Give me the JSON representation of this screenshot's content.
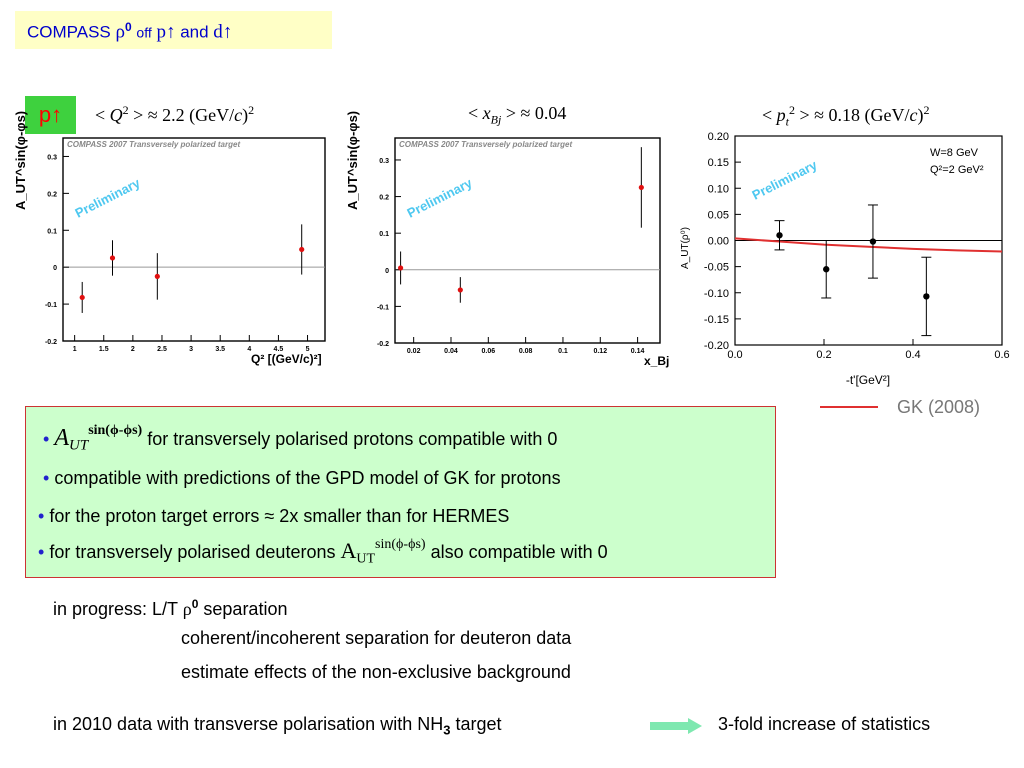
{
  "title": {
    "prefix": "COMPASS",
    "rho": "ρ",
    "zero": "0",
    "off": "off",
    "p": "p↑",
    "and": "and",
    "d": "d↑"
  },
  "badge": "p↑",
  "headers": {
    "h1": {
      "lt": "< ",
      "var": "Q",
      "sup": "2",
      "rest": " > ≈ 2.2 (GeV/",
      "c": "c",
      "close": ")",
      "sup2": "2"
    },
    "h2": {
      "lt": "< ",
      "var": "x",
      "sub": "Bj",
      "rest": " > ≈ 0.04"
    },
    "h3": {
      "lt": "< ",
      "var": "p",
      "sub": "t",
      "sup": "2",
      "rest": " > ≈ 0.18 (GeV/",
      "c": "c",
      "close": ")",
      "sup2": "2"
    }
  },
  "colors": {
    "data_point": "#e01010",
    "gk_curve": "#e03030",
    "preliminary": "#4ec8f0",
    "bullet": "#2222cc",
    "box_bg": "#ccffcc",
    "box_border": "#cc3333"
  },
  "chart_data": [
    {
      "type": "scatter",
      "banner": "COMPASS 2007 Transversely polarized target",
      "watermark": "Preliminary",
      "ylabel": "A_UT^sin(φ-φs)",
      "xlabel": "Q² [(GeV/c)²]",
      "xlim": [
        0.8,
        5.3
      ],
      "ylim": [
        -0.2,
        0.35
      ],
      "xticks": [
        "1",
        "1.5",
        "2",
        "2.5",
        "3",
        "3.5",
        "4",
        "4.5",
        "5"
      ],
      "yticks": [
        "-0.2",
        "-0.1",
        "0",
        "0.1",
        "0.2",
        "0.3"
      ],
      "x": [
        1.13,
        1.65,
        2.42,
        4.9
      ],
      "y": [
        -0.082,
        0.025,
        -0.025,
        0.048
      ],
      "err": [
        0.042,
        0.048,
        0.063,
        0.068
      ]
    },
    {
      "type": "scatter",
      "banner": "COMPASS 2007 Transversely polarized target",
      "watermark": "Preliminary",
      "ylabel": "A_UT^sin(φ-φs)",
      "xlabel": "x_Bj",
      "xlim": [
        0.01,
        0.152
      ],
      "ylim": [
        -0.2,
        0.36
      ],
      "xticks": [
        "0.02",
        "0.04",
        "0.06",
        "0.08",
        "0.1",
        "0.12",
        "0.14"
      ],
      "yticks": [
        "-0.2",
        "-0.1",
        "0",
        "0.1",
        "0.2",
        "0.3"
      ],
      "x": [
        0.013,
        0.045,
        0.142
      ],
      "y": [
        0.005,
        -0.055,
        0.225
      ],
      "err": [
        0.045,
        0.035,
        0.11
      ]
    },
    {
      "type": "scatter",
      "watermark": "Preliminary",
      "ylabel": "A_UT(ρ⁰)",
      "xlabel": "-t'[GeV²]",
      "annotation": [
        "W=8 GeV",
        "Q²=2 GeV²"
      ],
      "xlim": [
        0.0,
        0.6
      ],
      "ylim": [
        -0.2,
        0.2
      ],
      "xticks": [
        "0.0",
        "0.2",
        "0.4",
        "0.6"
      ],
      "yticks": [
        "-0.20",
        "-0.15",
        "-0.10",
        "-0.05",
        "0.00",
        "0.05",
        "0.10",
        "0.15",
        "0.20"
      ],
      "x": [
        0.1,
        0.205,
        0.31,
        0.43
      ],
      "y": [
        0.01,
        -0.055,
        -0.002,
        -0.107
      ],
      "err": [
        0.028,
        0.055,
        0.07,
        0.075
      ],
      "curve": {
        "name": "GK (2008)",
        "x": [
          0.0,
          0.1,
          0.2,
          0.3,
          0.4,
          0.5,
          0.6
        ],
        "y": [
          0.004,
          -0.002,
          -0.008,
          -0.012,
          -0.016,
          -0.019,
          -0.021
        ]
      }
    }
  ],
  "legend": {
    "label": "GK (2008)"
  },
  "summary": {
    "b1": {
      "A": "A",
      "sub": "UT",
      "sup": "sin(ϕ-ϕs)",
      "text": " for transversely polarised protons compatible with 0"
    },
    "b2": "compatible with predictions of the GPD model of GK for protons",
    "b3": "for the proton target errors ≈ 2x smaller than for HERMES",
    "b4": {
      "pre": "for transversely polarised deuterons ",
      "A": "A",
      "sub": "UT",
      "sup": "sin(ϕ-ϕs)",
      "post": " also compatible with 0"
    }
  },
  "progress": {
    "label": "in progress:  L/T ",
    "rho": "ρ",
    "zero": "0",
    "after": " separation",
    "line2": "coherent/incoherent  separation for deuteron data",
    "line3": "estimate effects of the non-exclusive background"
  },
  "footer": {
    "pre": "in 2010 data with transverse polarisation with NH",
    "sub": "3",
    "post": " target",
    "result": "3-fold increase of statistics"
  }
}
